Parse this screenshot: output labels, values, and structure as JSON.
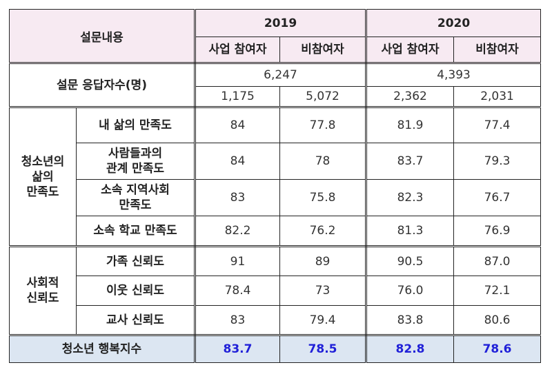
{
  "header": {
    "title": "설문내용",
    "years": [
      "2019",
      "2020"
    ],
    "sub": [
      "사업 참여자",
      "비참여자",
      "사업 참여자",
      "비참여자"
    ]
  },
  "respondents": {
    "label": "설문 응답자수(명)",
    "totals": [
      "6,247",
      "4,393"
    ],
    "values": [
      "1,175",
      "5,072",
      "2,362",
      "2,031"
    ]
  },
  "groups": [
    {
      "label": "청소년의\n삶의\n만족도",
      "rows": [
        {
          "label": "내 삶의 만족도",
          "values": [
            "84",
            "77.8",
            "81.9",
            "77.4"
          ]
        },
        {
          "label": "사람들과의\n관계 만족도",
          "values": [
            "84",
            "78",
            "83.7",
            "79.3"
          ]
        },
        {
          "label": "소속 지역사회\n만족도",
          "values": [
            "83",
            "75.8",
            "82.3",
            "76.7"
          ]
        },
        {
          "label": "소속 학교 만족도",
          "values": [
            "82.2",
            "76.2",
            "81.3",
            "76.9"
          ]
        }
      ]
    },
    {
      "label": "사회적\n신뢰도",
      "rows": [
        {
          "label": "가족 신뢰도",
          "values": [
            "91",
            "89",
            "90.5",
            "87.0"
          ]
        },
        {
          "label": "이웃 신뢰도",
          "values": [
            "78.4",
            "73",
            "76.0",
            "72.1"
          ]
        },
        {
          "label": "교사 신뢰도",
          "values": [
            "83",
            "79.4",
            "83.8",
            "80.6"
          ]
        }
      ]
    }
  ],
  "footer": {
    "label": "청소년 행복지수",
    "values": [
      "83.7",
      "78.5",
      "82.8",
      "78.6"
    ]
  },
  "colors": {
    "header_bg": "#f7eaf2",
    "footer_bg": "#dce6f2",
    "footer_value": "#2020d8"
  }
}
